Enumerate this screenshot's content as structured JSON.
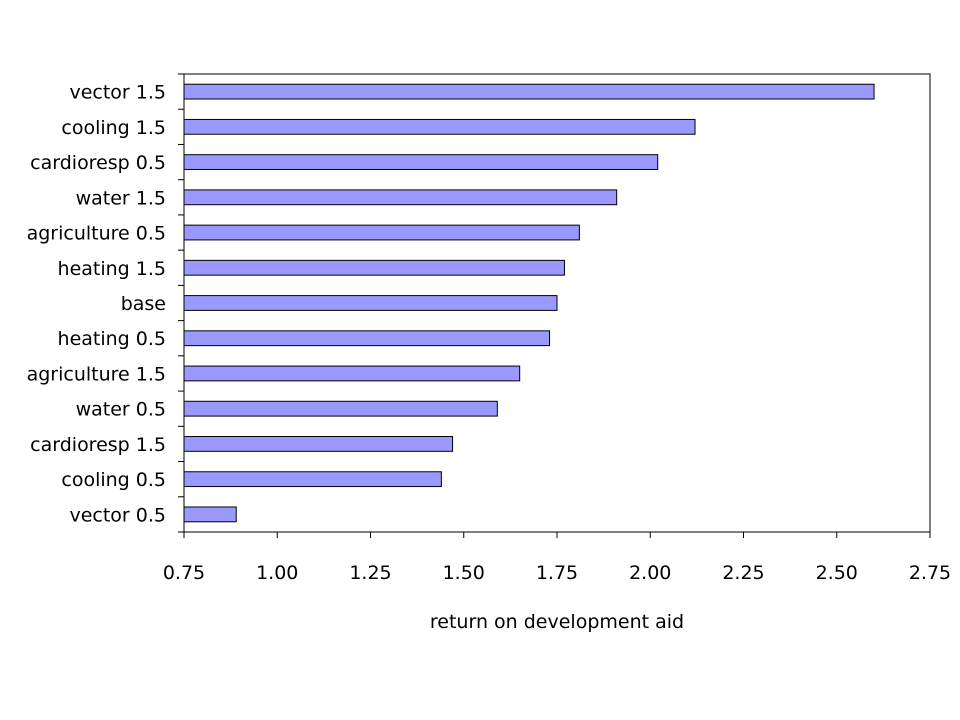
{
  "chart_data": {
    "type": "bar",
    "orientation": "horizontal",
    "categories": [
      "vector 1.5",
      "cooling 1.5",
      "cardioresp 0.5",
      "water 1.5",
      "agriculture 0.5",
      "heating 1.5",
      "base",
      "heating 0.5",
      "agriculture 1.5",
      "water 0.5",
      "cardioresp 1.5",
      "cooling 0.5",
      "vector 0.5"
    ],
    "values": [
      2.6,
      2.12,
      2.02,
      1.91,
      1.81,
      1.77,
      1.75,
      1.73,
      1.65,
      1.59,
      1.47,
      1.44,
      0.89
    ],
    "xlabel": "return on development aid",
    "ylabel": "",
    "xlim": [
      0.75,
      2.75
    ],
    "xticks": [
      "0.75",
      "1.00",
      "1.25",
      "1.50",
      "1.75",
      "2.00",
      "2.25",
      "2.50",
      "2.75"
    ],
    "bar_color": "#9999ff",
    "grid": false,
    "legend": "none"
  }
}
